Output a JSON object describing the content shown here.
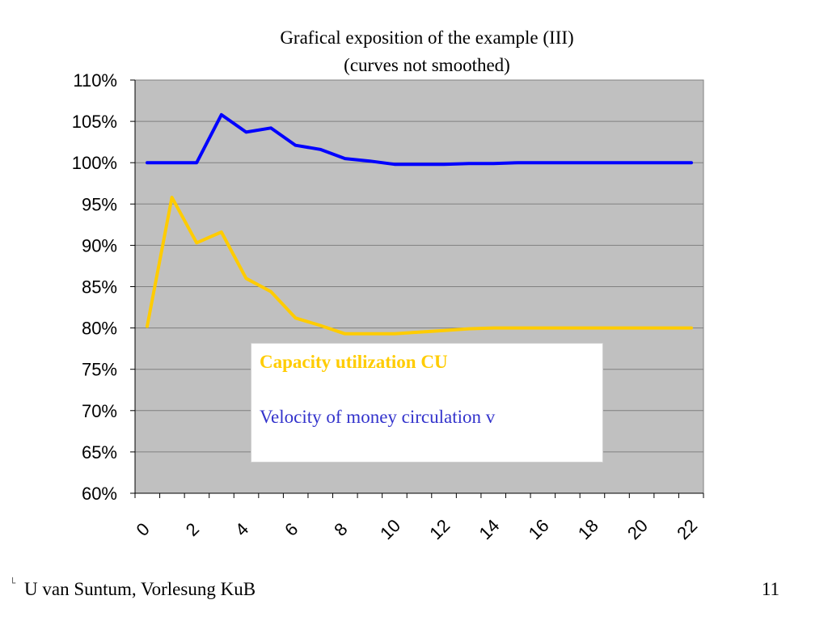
{
  "chart_data": {
    "type": "line",
    "title": "Grafical exposition of the example (III)",
    "subtitle": "(curves not smoothed)",
    "xlabel": "",
    "ylabel": "",
    "xlim": [
      0,
      23
    ],
    "ylim": [
      60,
      110
    ],
    "x_ticks": [
      0,
      2,
      4,
      6,
      8,
      10,
      12,
      14,
      16,
      18,
      20,
      22
    ],
    "y_ticks": [
      60,
      65,
      70,
      75,
      80,
      85,
      90,
      95,
      100,
      105,
      110
    ],
    "y_tick_labels": [
      "60%",
      "65%",
      "70%",
      "75%",
      "80%",
      "85%",
      "90%",
      "95%",
      "100%",
      "105%",
      "110%"
    ],
    "grid": "horizontal",
    "background_color": "#c0c0c0",
    "legend_placement": "center",
    "x": [
      0,
      1,
      2,
      3,
      4,
      5,
      6,
      7,
      8,
      9,
      10,
      11,
      12,
      13,
      14,
      15,
      16,
      17,
      18,
      19,
      20,
      21,
      22
    ],
    "series": [
      {
        "name": "Capacity utilization CU",
        "color": "#ffcc00",
        "values": [
          80.2,
          95.8,
          90.3,
          91.6,
          86.0,
          84.4,
          81.2,
          80.3,
          79.3,
          79.3,
          79.3,
          79.5,
          79.7,
          79.9,
          80.0,
          80.0,
          80.0,
          80.0,
          80.0,
          80.0,
          80.0,
          80.0,
          80.0
        ]
      },
      {
        "name": "Velocity of money circulation v",
        "color": "#0000ff",
        "values": [
          100.0,
          100.0,
          100.0,
          105.8,
          103.7,
          104.2,
          102.1,
          101.6,
          100.5,
          100.2,
          99.8,
          99.8,
          99.8,
          99.9,
          99.9,
          100.0,
          100.0,
          100.0,
          100.0,
          100.0,
          100.0,
          100.0,
          100.0
        ]
      }
    ]
  },
  "footer": {
    "author": "U van Suntum, Vorlesung KuB",
    "page_number": "11",
    "mark": "└"
  }
}
